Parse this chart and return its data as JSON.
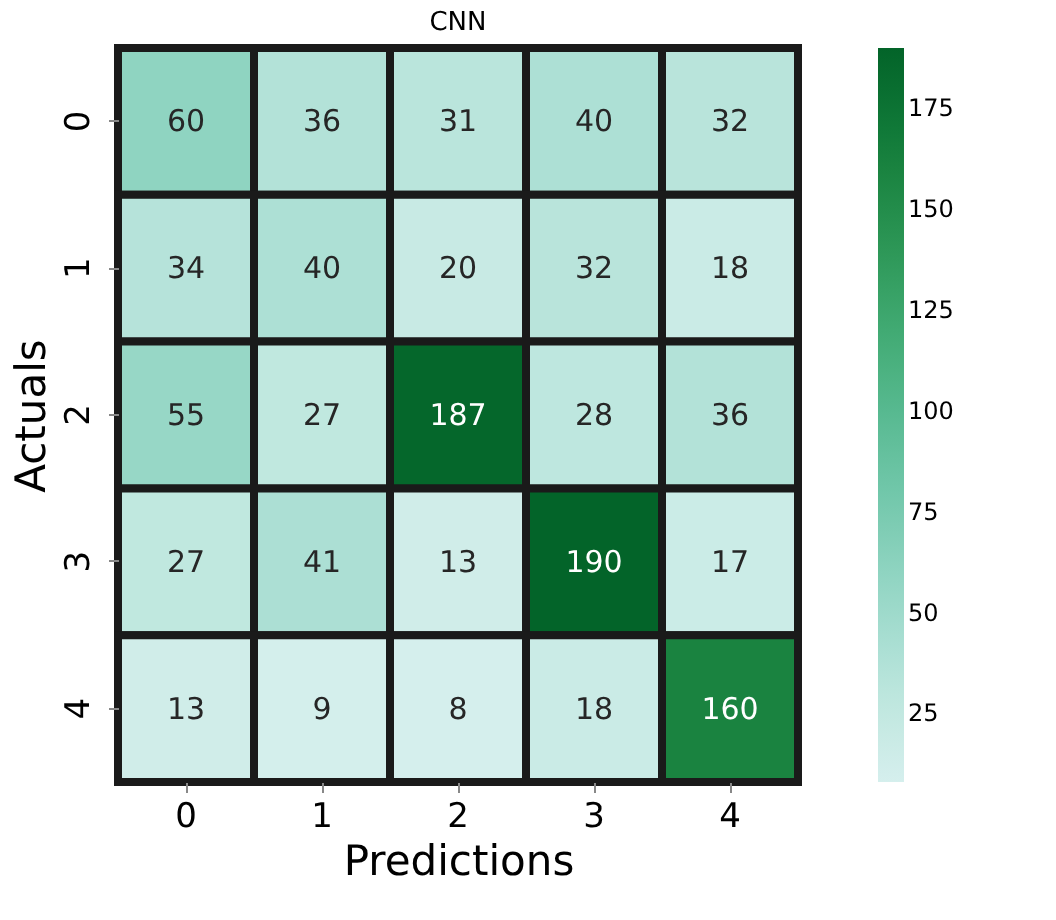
{
  "chart_data": {
    "type": "heatmap",
    "title": "CNN",
    "xlabel": "Predictions",
    "ylabel": "Actuals",
    "categories": [
      "0",
      "1",
      "2",
      "3",
      "4"
    ],
    "y_categories": [
      "0",
      "1",
      "2",
      "3",
      "4"
    ],
    "cells": [
      [
        60,
        36,
        31,
        40,
        32
      ],
      [
        34,
        40,
        20,
        32,
        18
      ],
      [
        55,
        27,
        187,
        28,
        36
      ],
      [
        27,
        41,
        13,
        190,
        17
      ],
      [
        13,
        9,
        8,
        18,
        160
      ]
    ],
    "data_labels": true,
    "clim": [
      8,
      190
    ],
    "cticks": [
      25,
      50,
      75,
      100,
      125,
      150,
      175
    ]
  }
}
